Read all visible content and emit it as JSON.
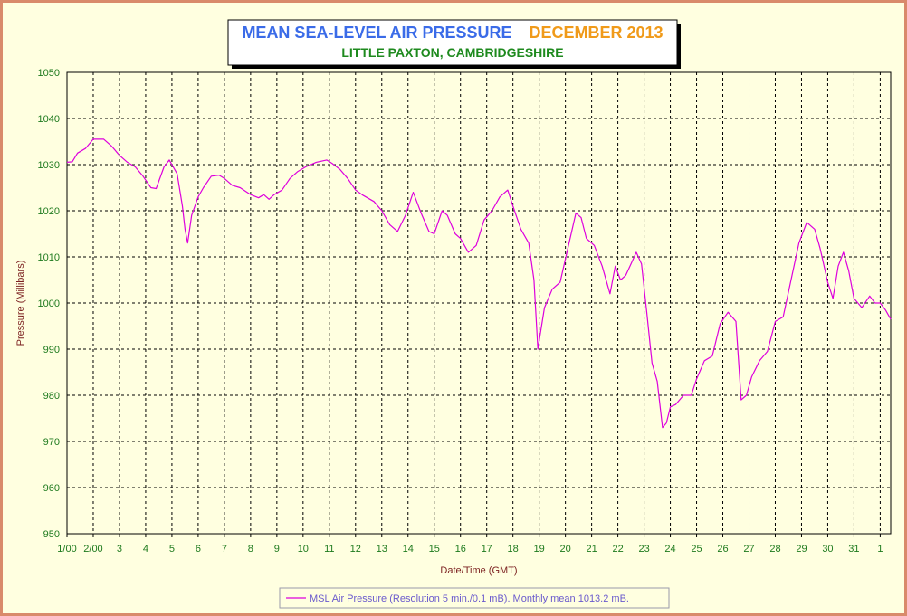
{
  "title": {
    "main": "MEAN SEA-LEVEL AIR PRESSURE",
    "period": "DECEMBER 2013",
    "location": "LITTLE PAXTON, CAMBRIDGESHIRE"
  },
  "colors": {
    "background": "#ffffe0",
    "border": "#d98a6b",
    "title_main": "#3a6be8",
    "title_period": "#f09a1a",
    "title_location": "#1e8a1e",
    "tick_labels": "#1e7a1e",
    "axis_title": "#7a1e1e",
    "series": "#dd00dd",
    "legend_text": "#6a5acd"
  },
  "legend": {
    "label": "MSL Air Pressure (Resolution 5 min./0.1 mB). Monthly mean 1013.2 mB."
  },
  "chart_data": {
    "type": "line",
    "title": "MEAN SEA-LEVEL AIR PRESSURE   DECEMBER 2013",
    "subtitle": "LITTLE PAXTON, CAMBRIDGESHIRE",
    "xlabel": "Date/Time (GMT)",
    "ylabel": "Pressure (Millibars)",
    "ylim": [
      950,
      1050
    ],
    "xlim": [
      1,
      32.4
    ],
    "grid": true,
    "legend_position": "bottom",
    "x_ticks": [
      1,
      2,
      3,
      4,
      5,
      6,
      7,
      8,
      9,
      10,
      11,
      12,
      13,
      14,
      15,
      16,
      17,
      18,
      19,
      20,
      21,
      22,
      23,
      24,
      25,
      26,
      27,
      28,
      29,
      30,
      31,
      32
    ],
    "x_tick_labels": [
      "1/00",
      "2/00",
      "3",
      "4",
      "5",
      "6",
      "7",
      "8",
      "9",
      "10",
      "11",
      "12",
      "13",
      "14",
      "15",
      "16",
      "17",
      "18",
      "19",
      "20",
      "21",
      "22",
      "23",
      "24",
      "25",
      "26",
      "27",
      "28",
      "29",
      "30",
      "31",
      "1"
    ],
    "y_ticks": [
      950,
      960,
      970,
      980,
      990,
      1000,
      1010,
      1020,
      1030,
      1040,
      1050
    ],
    "y_tick_labels": [
      "950",
      "960",
      "970",
      "980",
      "990",
      "1000",
      "1010",
      "1020",
      "1030",
      "1040",
      "1050"
    ],
    "series": [
      {
        "name": "MSL Air Pressure (Resolution 5 min./0.1 mB). Monthly mean 1013.2 mB.",
        "x": [
          1.0,
          1.2,
          1.4,
          1.7,
          2.0,
          2.4,
          2.7,
          3.0,
          3.3,
          3.6,
          3.9,
          4.2,
          4.4,
          4.7,
          4.9,
          5.2,
          5.4,
          5.5,
          5.6,
          5.75,
          6.0,
          6.2,
          6.5,
          6.8,
          7.0,
          7.3,
          7.6,
          8.0,
          8.3,
          8.5,
          8.7,
          8.9,
          9.2,
          9.5,
          9.8,
          10.1,
          10.5,
          10.9,
          11.1,
          11.4,
          11.7,
          12.0,
          12.3,
          12.7,
          13.0,
          13.3,
          13.6,
          13.9,
          14.2,
          14.5,
          14.8,
          15.0,
          15.3,
          15.5,
          15.8,
          16.0,
          16.3,
          16.6,
          16.9,
          17.2,
          17.5,
          17.8,
          18.0,
          18.3,
          18.6,
          18.8,
          18.95,
          19.2,
          19.5,
          19.8,
          20.1,
          20.4,
          20.6,
          20.8,
          21.1,
          21.4,
          21.7,
          21.9,
          22.1,
          22.3,
          22.5,
          22.7,
          22.9,
          23.1,
          23.3,
          23.5,
          23.7,
          23.85,
          24.0,
          24.2,
          24.5,
          24.8,
          25.0,
          25.3,
          25.6,
          25.9,
          26.2,
          26.5,
          26.7,
          26.9,
          27.1,
          27.4,
          27.7,
          28.0,
          28.3,
          28.6,
          28.9,
          29.2,
          29.5,
          29.7,
          30.0,
          30.2,
          30.4,
          30.6,
          30.8,
          31.0,
          31.3,
          31.6,
          31.8,
          32.0,
          32.2,
          32.4
        ],
        "values": [
          1030.5,
          1030.6,
          1032.5,
          1033.5,
          1035.5,
          1035.5,
          1034.0,
          1032.0,
          1030.5,
          1029.5,
          1027.5,
          1025.0,
          1024.8,
          1029.5,
          1031.0,
          1028.0,
          1021.0,
          1016.0,
          1013.0,
          1019.0,
          1023.0,
          1025.0,
          1027.5,
          1027.7,
          1027.0,
          1025.5,
          1025.0,
          1023.5,
          1022.8,
          1023.5,
          1022.5,
          1023.5,
          1024.5,
          1027.0,
          1028.5,
          1029.5,
          1030.5,
          1031.0,
          1030.3,
          1029.0,
          1027.0,
          1024.5,
          1023.3,
          1022.0,
          1020.0,
          1017.0,
          1015.5,
          1019.0,
          1024.0,
          1019.5,
          1015.5,
          1015.0,
          1020.0,
          1019.0,
          1015.0,
          1014.0,
          1011.0,
          1012.5,
          1018.0,
          1020.0,
          1023.0,
          1024.5,
          1021.0,
          1016.0,
          1013.0,
          1005.0,
          990.0,
          999.0,
          1003.0,
          1004.5,
          1012.0,
          1019.5,
          1018.5,
          1014.0,
          1012.5,
          1008.0,
          1002.0,
          1008.0,
          1005.0,
          1006.0,
          1008.5,
          1011.0,
          1008.5,
          998.0,
          987.0,
          983.0,
          973.0,
          974.0,
          977.5,
          978.0,
          980.0,
          980.0,
          983.5,
          987.5,
          988.5,
          995.5,
          998.0,
          996.0,
          979.0,
          980.0,
          984.0,
          987.5,
          989.5,
          996.0,
          997.0,
          1005.0,
          1013.0,
          1017.5,
          1016.0,
          1012.0,
          1004.5,
          1001.0,
          1008.0,
          1011.0,
          1007.0,
          1001.0,
          999.0,
          1001.5,
          1000.0,
          1000.0,
          998.5,
          996.5
        ]
      }
    ]
  }
}
